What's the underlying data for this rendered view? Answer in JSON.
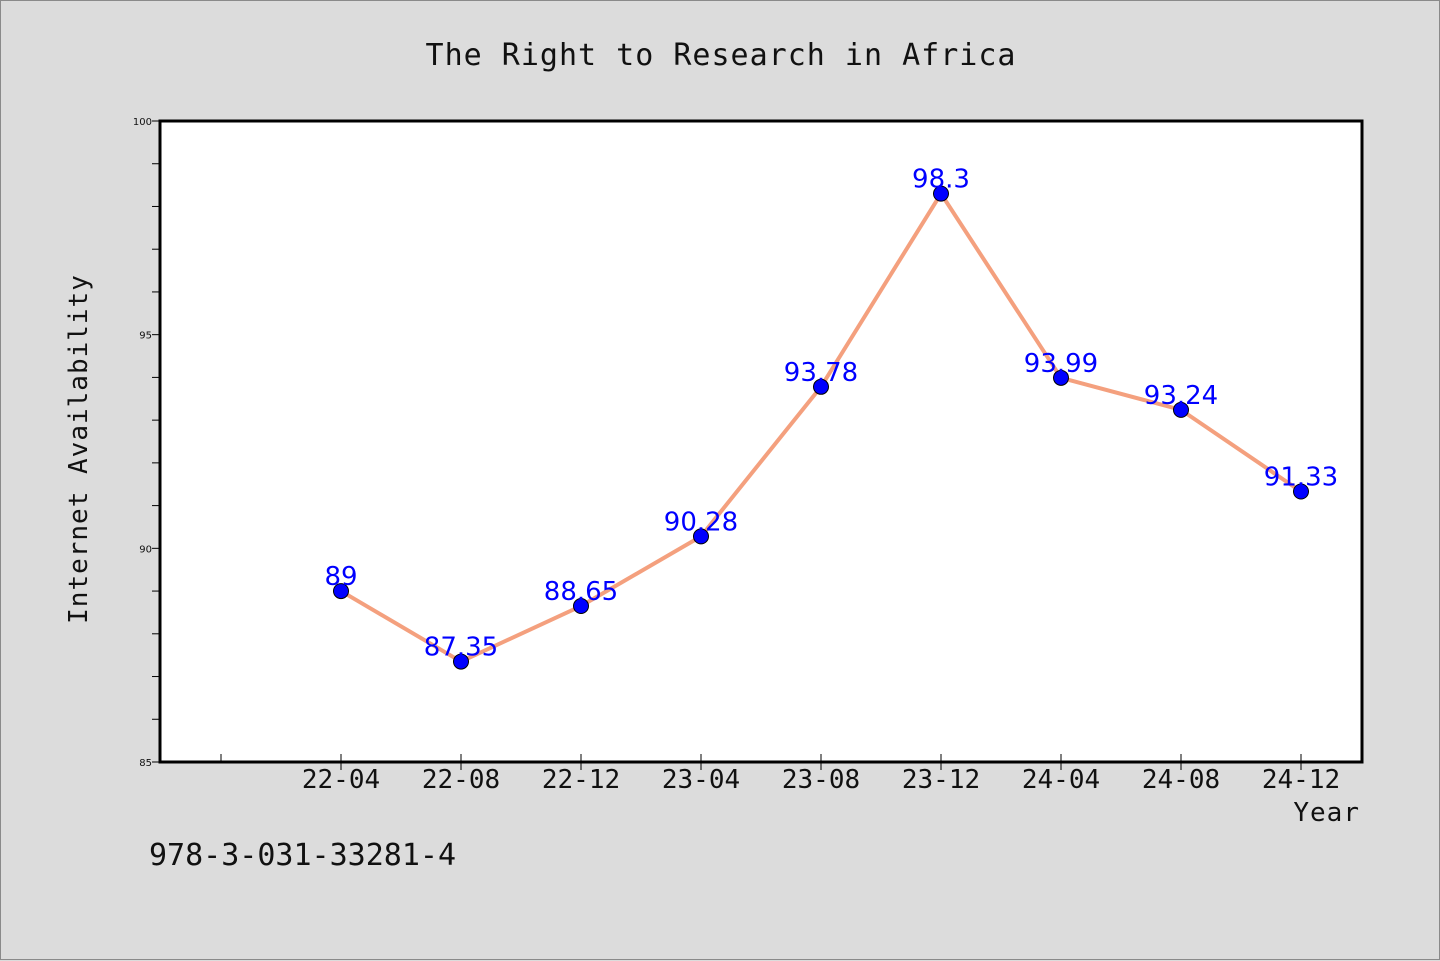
{
  "chart_data": {
    "type": "line",
    "title": "The Right to Research in Africa",
    "xlabel": "Year",
    "ylabel": "Internet Availability",
    "categories": [
      "22-04",
      "22-08",
      "22-12",
      "23-04",
      "23-08",
      "23-12",
      "24-04",
      "24-08",
      "24-12"
    ],
    "series": [
      {
        "values": [
          89,
          87.35,
          88.65,
          90.28,
          93.78,
          98.3,
          93.99,
          93.24,
          91.33
        ],
        "labels": [
          "89",
          "87.35",
          "88.65",
          "90.28",
          "93.78",
          "98.3",
          "93.99",
          "93.24",
          "91.33"
        ],
        "line_color": "#f4a07e",
        "marker_color": "#0000ff"
      }
    ],
    "ylim": [
      85,
      100
    ],
    "yticks": [
      85,
      90,
      95,
      100
    ],
    "grid": false,
    "legend": "none",
    "plot_background": "#ffffff"
  },
  "footer": {
    "text": "978-3-031-33281-4"
  }
}
